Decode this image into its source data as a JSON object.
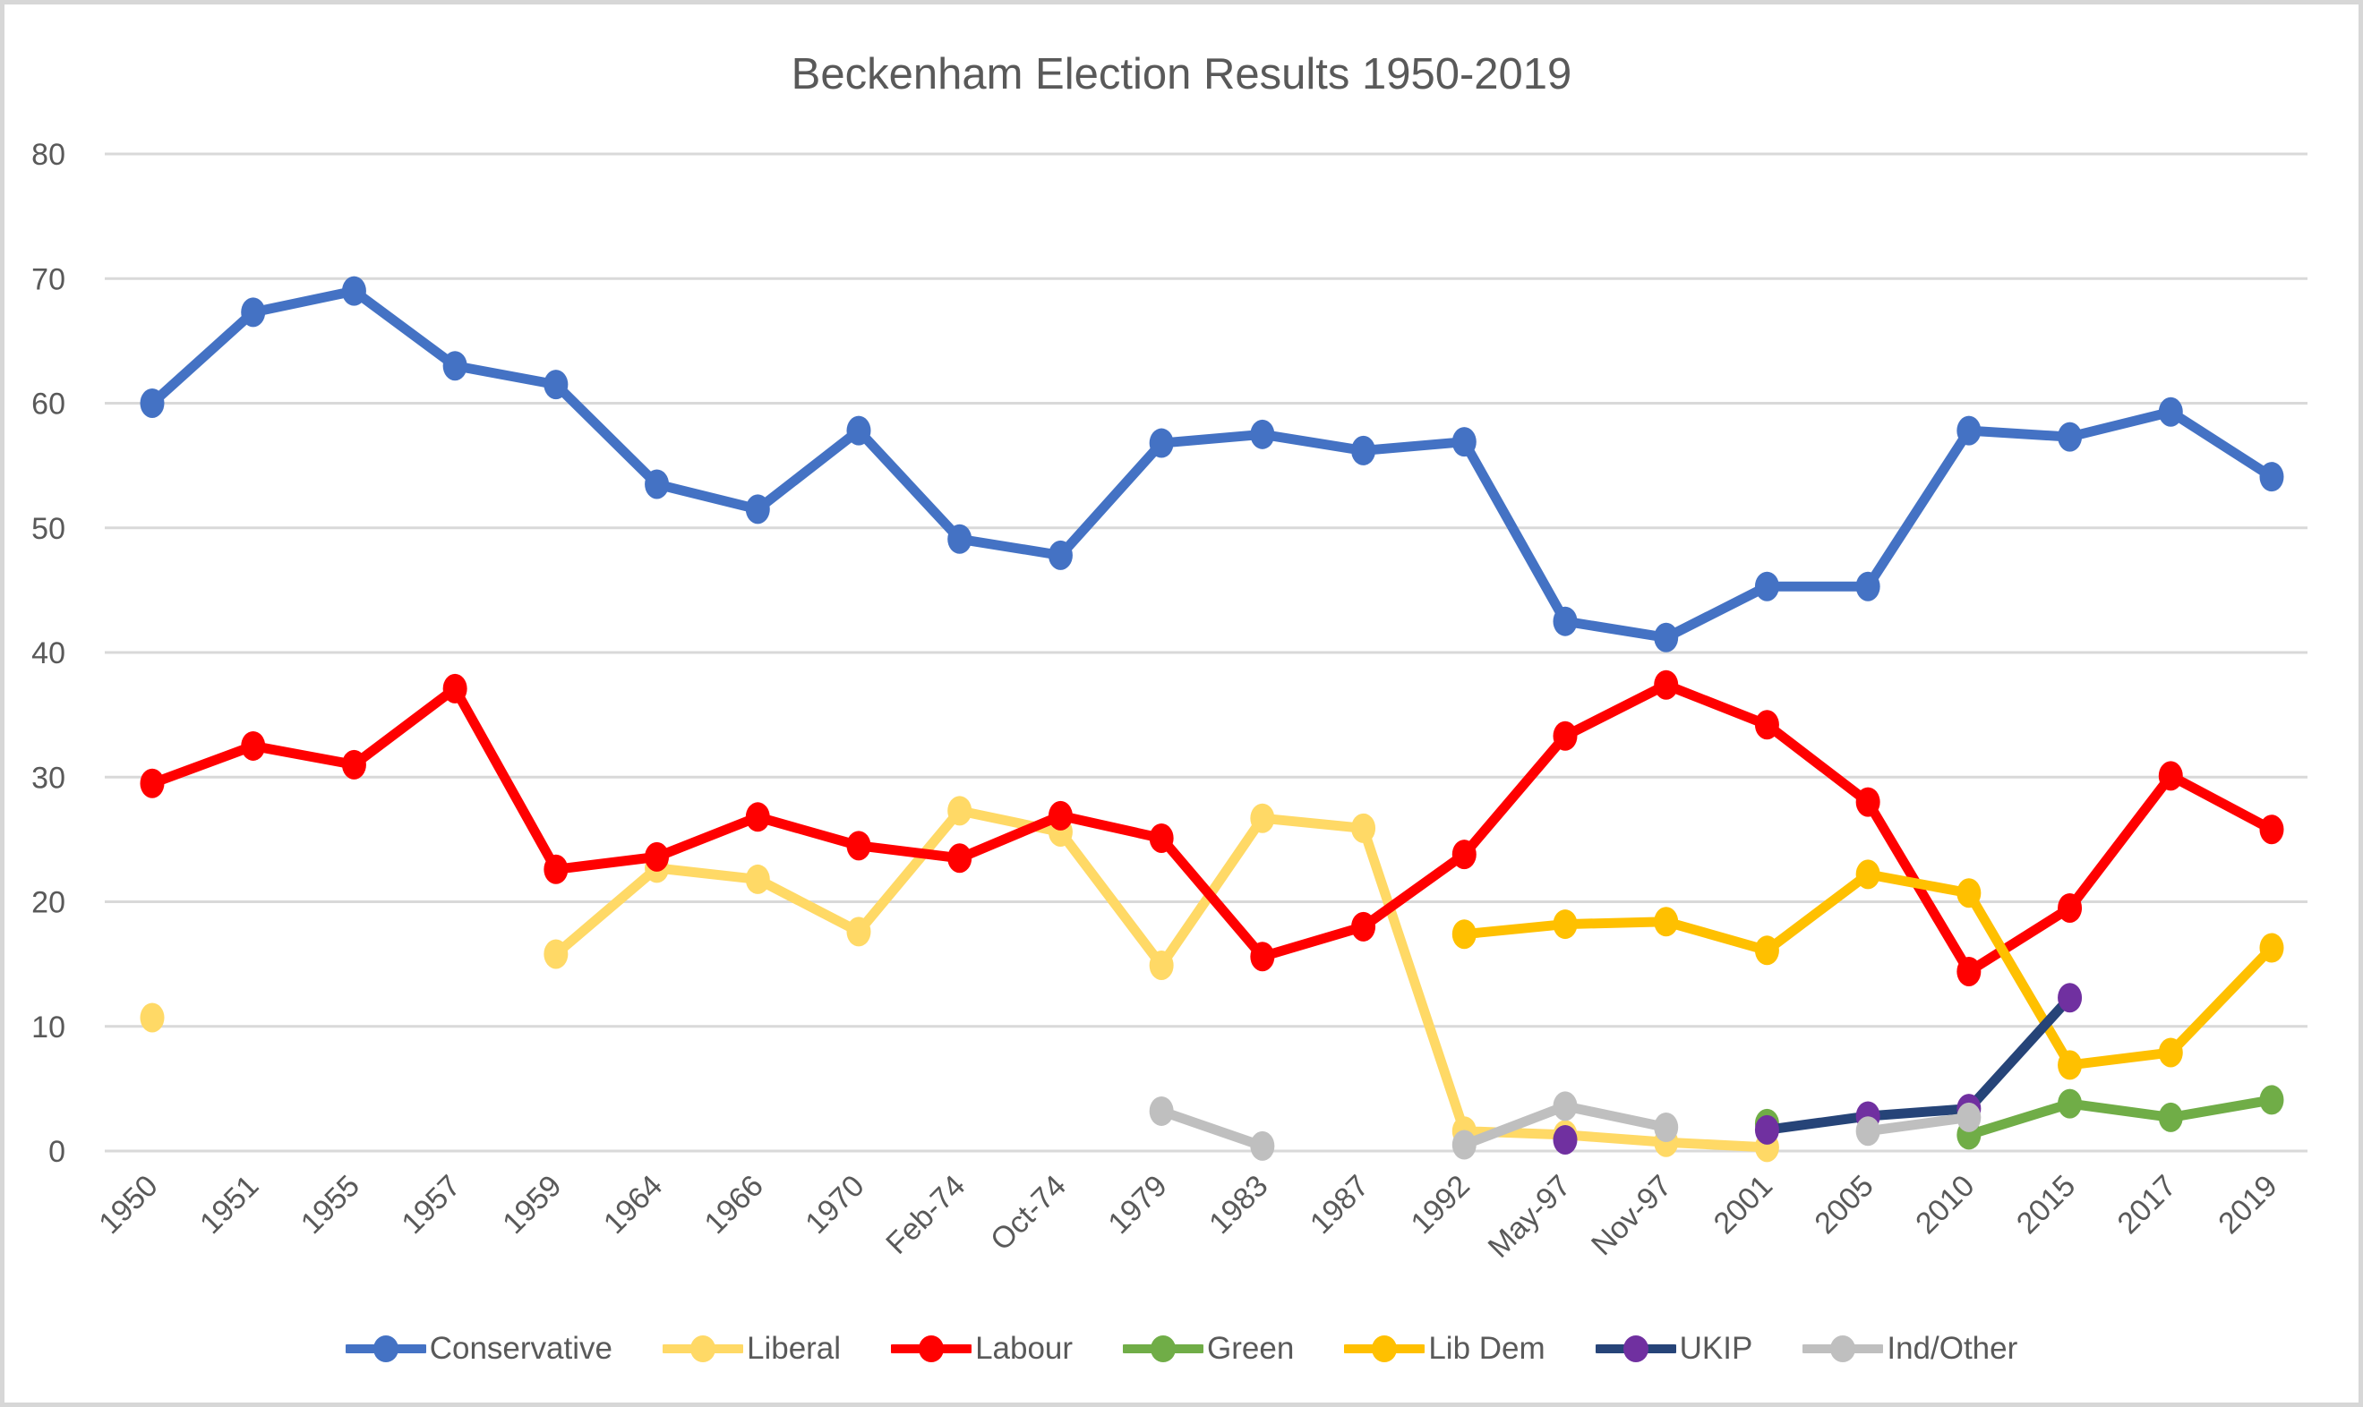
{
  "frame": {
    "background": "#FFFFFF",
    "border_color": "#D7D7D7"
  },
  "chart_data": {
    "type": "line",
    "title": "Beckenham Election Results 1950-2019",
    "xlabel": "",
    "ylabel": "",
    "ylim": [
      0,
      80
    ],
    "y_ticks": [
      0,
      10,
      20,
      30,
      40,
      50,
      60,
      70,
      80
    ],
    "grid": true,
    "grid_color": "#D9D9D9",
    "text_color": "#595959",
    "legend_position": "bottom",
    "categories": [
      "1950",
      "1951",
      "1955",
      "1957",
      "1959",
      "1964",
      "1966",
      "1970",
      "Feb-74",
      "Oct-74",
      "1979",
      "1983",
      "1987",
      "1992",
      "May-97",
      "Nov-97",
      "2001",
      "2005",
      "2010",
      "2015",
      "2017",
      "2019"
    ],
    "series": [
      {
        "name": "Conservative",
        "color": "#4472C4",
        "values": [
          60,
          67.3,
          69,
          63,
          61.5,
          53.5,
          51.5,
          57.8,
          49.1,
          47.8,
          56.8,
          57.5,
          56.2,
          56.9,
          42.5,
          41.2,
          45.3,
          45.3,
          57.8,
          57.3,
          59.3,
          54.1
        ]
      },
      {
        "name": "Liberal",
        "color": "#FFD966",
        "values": [
          10.7,
          null,
          null,
          null,
          15.8,
          22.7,
          21.8,
          17.6,
          27.3,
          25.6,
          14.9,
          26.7,
          25.9,
          1.6,
          1.3,
          0.7,
          0.3,
          null,
          null,
          null,
          null,
          null
        ]
      },
      {
        "name": "Labour",
        "color": "#FF0000",
        "values": [
          29.5,
          32.5,
          31,
          37.1,
          22.6,
          23.6,
          26.8,
          24.5,
          23.5,
          26.9,
          25.1,
          15.6,
          18,
          23.8,
          33.3,
          37.4,
          34.2,
          28,
          14.4,
          19.5,
          30.1,
          25.8
        ]
      },
      {
        "name": "Green",
        "color": "#70AD47",
        "values": [
          null,
          null,
          null,
          null,
          null,
          null,
          null,
          null,
          null,
          null,
          null,
          null,
          null,
          null,
          null,
          null,
          2.2,
          null,
          1.3,
          3.8,
          2.7,
          4.1
        ]
      },
      {
        "name": "Lib Dem",
        "color": "#FFC000",
        "values": [
          null,
          null,
          null,
          null,
          null,
          null,
          null,
          null,
          null,
          null,
          null,
          null,
          null,
          17.4,
          18.2,
          18.4,
          16.1,
          22.2,
          20.7,
          6.9,
          7.9,
          16.3
        ]
      },
      {
        "name": "UKIP",
        "color": "#264478",
        "marker_color": "#7030A0",
        "values": [
          null,
          null,
          null,
          null,
          null,
          null,
          null,
          null,
          null,
          null,
          null,
          null,
          null,
          null,
          0.9,
          null,
          1.7,
          2.8,
          3.4,
          12.3,
          null,
          null
        ]
      },
      {
        "name": "Ind/Other",
        "color": "#BFBFBF",
        "values": [
          null,
          null,
          null,
          null,
          null,
          null,
          null,
          null,
          null,
          null,
          3.2,
          0.4,
          null,
          0.5,
          3.6,
          1.9,
          null,
          1.6,
          2.7,
          null,
          null,
          null
        ]
      }
    ]
  }
}
